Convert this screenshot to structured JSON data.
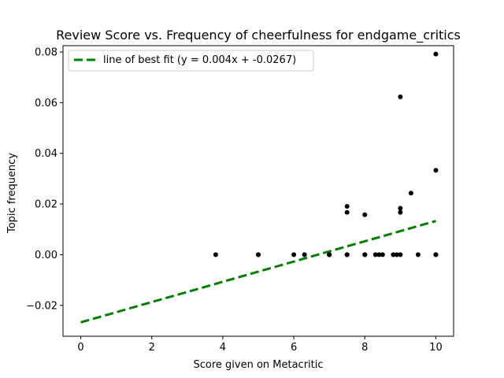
{
  "chart_data": {
    "type": "scatter",
    "title": "Review Score vs. Frequency of cheerfulness for endgame_critics",
    "xlabel": "Score given on Metacritic",
    "ylabel": "Topic frequency",
    "xlim": [
      -0.5,
      10.5
    ],
    "ylim": [
      -0.0322,
      0.0825
    ],
    "xticks": [
      0,
      2,
      4,
      6,
      8,
      10
    ],
    "yticks": [
      -0.02,
      0.0,
      0.02,
      0.04,
      0.06,
      0.08
    ],
    "xtick_labels": [
      "0",
      "2",
      "4",
      "6",
      "8",
      "10"
    ],
    "ytick_labels": [
      "−0.02",
      "0.00",
      "0.02",
      "0.04",
      "0.06",
      "0.08"
    ],
    "grid": false,
    "legend_position": "top-left",
    "series": [
      {
        "kind": "scatter",
        "color": "#000000",
        "points": [
          [
            3.8,
            0.0
          ],
          [
            5.0,
            0.0
          ],
          [
            5.0,
            0.0
          ],
          [
            6.0,
            0.0
          ],
          [
            6.3,
            0.0
          ],
          [
            7.0,
            0.0
          ],
          [
            7.0,
            0.0
          ],
          [
            7.0,
            0.0
          ],
          [
            7.0,
            0.0
          ],
          [
            7.5,
            0.0
          ],
          [
            7.5,
            0.0
          ],
          [
            7.5,
            0.0
          ],
          [
            7.5,
            0.0191
          ],
          [
            7.5,
            0.0167
          ],
          [
            8.0,
            0.0
          ],
          [
            8.0,
            0.0
          ],
          [
            8.0,
            0.0
          ],
          [
            8.0,
            0.0158
          ],
          [
            8.3,
            0.0
          ],
          [
            8.4,
            0.0
          ],
          [
            8.5,
            0.0
          ],
          [
            8.8,
            0.0
          ],
          [
            8.9,
            0.0
          ],
          [
            9.0,
            0.0
          ],
          [
            9.0,
            0.0623
          ],
          [
            9.0,
            0.0183
          ],
          [
            9.0,
            0.0167
          ],
          [
            9.3,
            0.0243
          ],
          [
            9.5,
            0.0
          ],
          [
            10.0,
            0.0
          ],
          [
            10.0,
            0.0
          ],
          [
            10.0,
            0.0792
          ],
          [
            10.0,
            0.0333
          ]
        ]
      },
      {
        "kind": "line",
        "name": "line of best fit (y = 0.004x + -0.0267)",
        "color": "#008000",
        "dashed": true,
        "slope": 0.004,
        "intercept": -0.0267,
        "x_range": [
          0,
          10
        ]
      }
    ]
  }
}
